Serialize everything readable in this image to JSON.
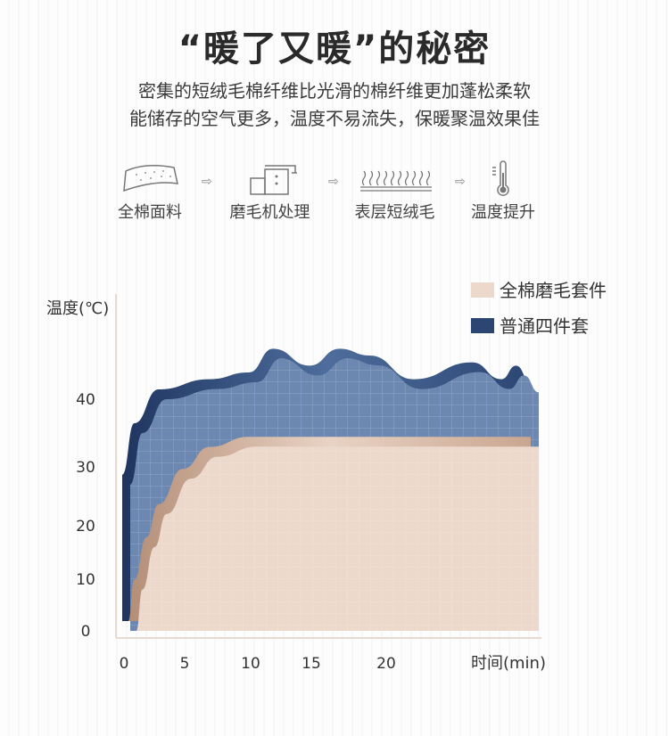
{
  "header": {
    "title": "“暖了又暖”的秘密",
    "subtitle_lines": [
      "密集的短绒毛棉纤维比光滑的棉纤维更加蓬松柔软",
      "能储存的空气更多，温度不易流失，保暖聚温效果佳"
    ]
  },
  "process": {
    "steps": [
      {
        "label": "全棉面料",
        "icon": "fabric-icon"
      },
      {
        "label": "磨毛机处理",
        "icon": "brushing-machine-icon"
      },
      {
        "label": "表层短绒毛",
        "icon": "short-fleece-icon"
      },
      {
        "label": "温度提升",
        "icon": "thermometer-icon"
      }
    ],
    "arrow": "⇨"
  },
  "colors": {
    "beige": "#ecd9cc",
    "beige_edge": "#c9a690",
    "blue": "#6c87b0",
    "blue_edge": "#2c4673",
    "axis": "#e2cfc2"
  },
  "chart_data": {
    "type": "area",
    "ylabel": "温度(℃)",
    "xlabel": "时间(min)",
    "xticks": [
      0,
      5,
      10,
      15,
      20
    ],
    "yticks": [
      0,
      10,
      20,
      30,
      40
    ],
    "xlim": [
      0,
      30
    ],
    "ylim": [
      0,
      50
    ],
    "grid": false,
    "legend_placement": "top-right",
    "series": [
      {
        "name": "全棉磨毛套件",
        "color": "#ecd9cc",
        "points": [
          [
            0.5,
            0
          ],
          [
            1,
            8
          ],
          [
            2,
            16
          ],
          [
            3,
            22
          ],
          [
            5,
            28
          ],
          [
            7,
            31.5
          ],
          [
            10,
            33
          ],
          [
            30,
            33
          ]
        ]
      },
      {
        "name": "普通四件套",
        "color": "#3d5a8a",
        "points": [
          [
            0,
            3
          ],
          [
            0,
            27
          ],
          [
            1,
            35
          ],
          [
            3,
            40
          ],
          [
            7,
            41.5
          ],
          [
            10,
            42.5
          ],
          [
            12,
            46
          ],
          [
            15,
            43.5
          ],
          [
            17,
            46
          ],
          [
            19,
            45
          ],
          [
            22,
            41.5
          ],
          [
            26,
            44
          ],
          [
            28,
            41.5
          ],
          [
            29,
            43.5
          ],
          [
            30,
            41
          ]
        ]
      }
    ]
  }
}
